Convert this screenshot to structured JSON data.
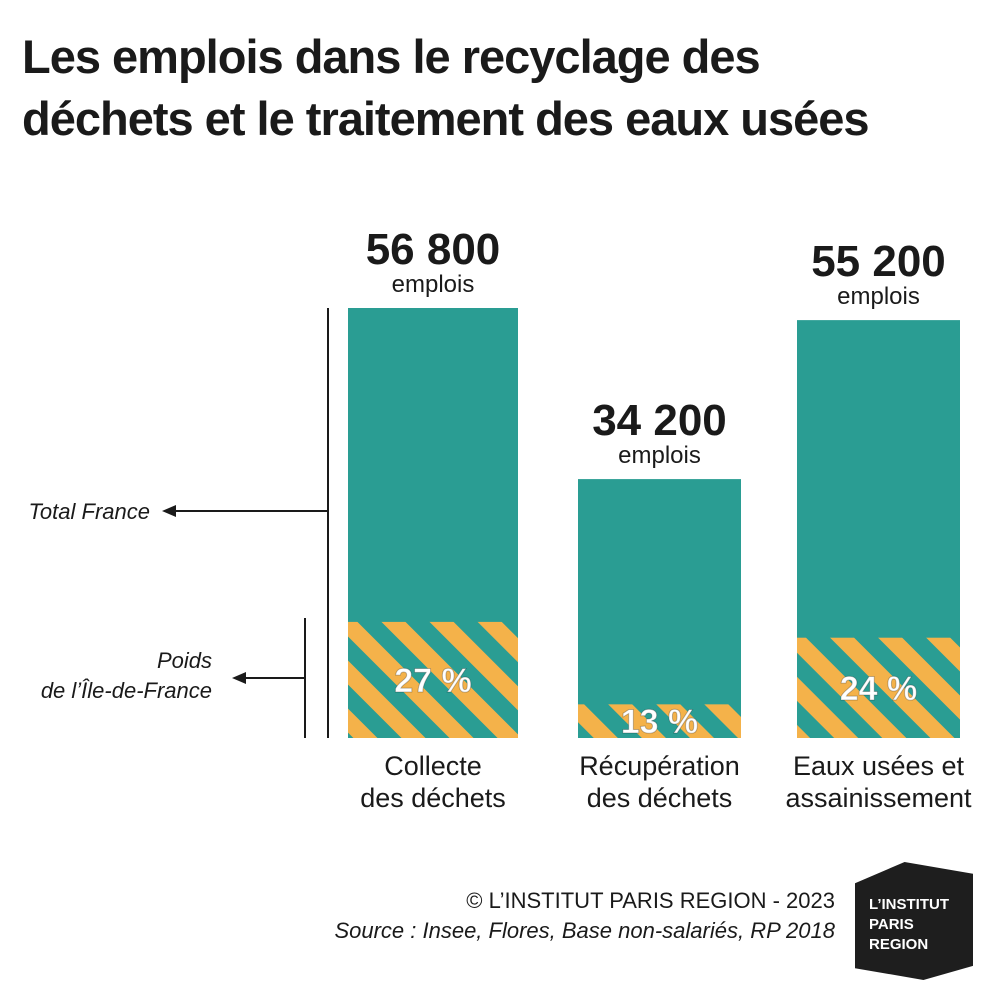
{
  "title_line1": "Les emplois dans le recyclage des",
  "title_line2": "déchets et le traitement des eaux usées",
  "legend": {
    "total_label": "Total France",
    "share_line1": "Poids",
    "share_line2": "de l’Île-de-France"
  },
  "credit": {
    "copyright": "© L’INSTITUT PARIS REGION - 2023",
    "source": "Source : Insee, Flores, Base non-salariés, RP 2018"
  },
  "logo": {
    "line1": "L’INSTITUT",
    "line2": "PARIS",
    "line3": "REGION"
  },
  "colors": {
    "bar": "#2a9d93",
    "stripe": "#f4b24a",
    "text": "#1a1a1a"
  },
  "chart_data": {
    "type": "bar",
    "title": "Les emplois dans le recyclage des déchets et le traitement des eaux usées",
    "unit": "emplois",
    "categories": [
      [
        "Collecte",
        "des déchets"
      ],
      [
        "Récupération",
        "des déchets"
      ],
      [
        "Eaux usées et",
        "assainissement"
      ]
    ],
    "values": [
      56800,
      34200,
      55200
    ],
    "value_labels": [
      "56 800",
      "34 200",
      "55 200"
    ],
    "share_values": [
      27,
      13,
      24
    ],
    "share_labels": [
      "27 %",
      "13 %",
      "24 %"
    ],
    "ylim": [
      0,
      56800
    ],
    "grid": false
  }
}
